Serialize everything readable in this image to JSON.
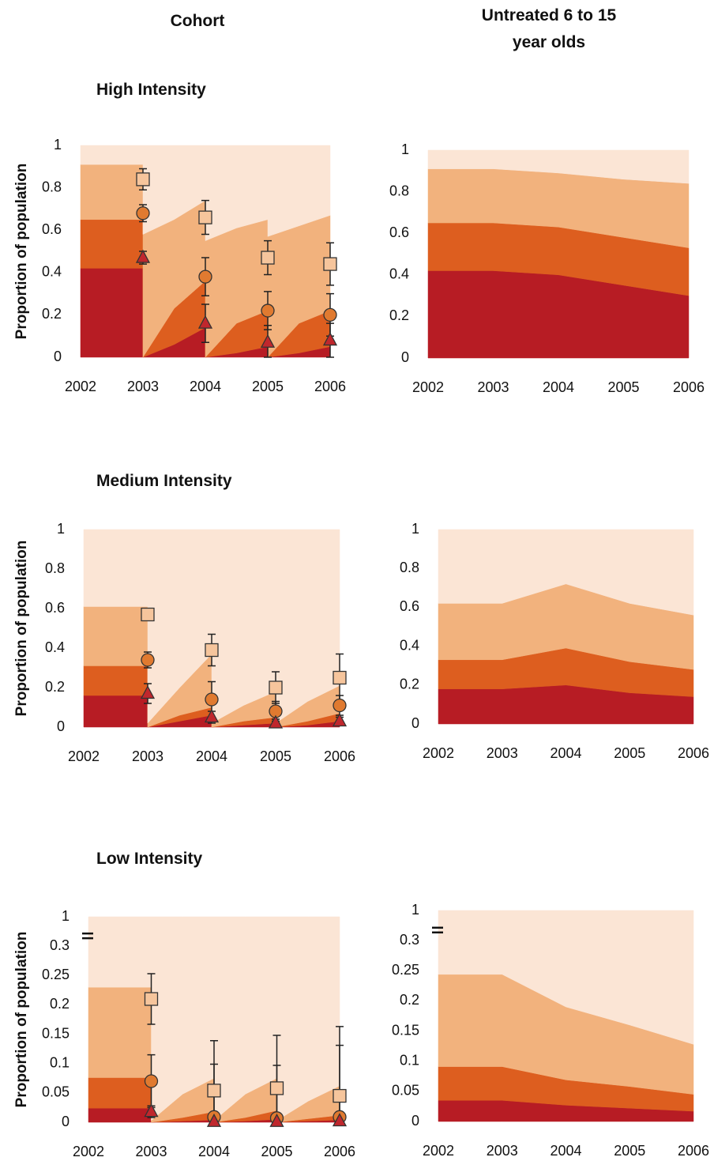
{
  "column_titles": [
    "Cohort",
    "Untreated 6 to 15 year olds"
  ],
  "row_titles": [
    "High Intensity",
    "Medium Intensity",
    "Low Intensity"
  ],
  "chart_data": [
    {
      "type": "area",
      "stacked": true,
      "ylabel": "Proportion of population",
      "x": [
        2002,
        2003,
        2003,
        2003.5,
        2004,
        2004,
        2004.5,
        2005,
        2005,
        2005.5,
        2006
      ],
      "series": [
        {
          "color": "#b71c24",
          "values": [
            0.42,
            0.42,
            0,
            0.06,
            0.14,
            0,
            0.02,
            0.05,
            0,
            0.02,
            0.05
          ]
        },
        {
          "color": "#dd5e1f",
          "values": [
            0.23,
            0.23,
            0,
            0.17,
            0.22,
            0,
            0.14,
            0.17,
            0,
            0.14,
            0.17
          ]
        },
        {
          "color": "#f2b27d",
          "values": [
            0.26,
            0.26,
            0.58,
            0.42,
            0.38,
            0.55,
            0.45,
            0.43,
            0.57,
            0.46,
            0.45
          ]
        },
        {
          "color": "#fbe5d5",
          "values": [
            0.09,
            0.09,
            0.42,
            0.35,
            0.26,
            0.45,
            0.39,
            0.35,
            0.43,
            0.38,
            0.33
          ]
        }
      ],
      "marker_x": [
        2003,
        2004,
        2005,
        2006
      ],
      "markers": [
        {
          "shape": "square",
          "color": "#f6c59c",
          "values": [
            0.84,
            0.66,
            0.47,
            0.44
          ],
          "errors": [
            0.05,
            0.08,
            0.08,
            0.1
          ]
        },
        {
          "shape": "circle",
          "color": "#e07a30",
          "values": [
            0.68,
            0.38,
            0.22,
            0.2
          ],
          "errors": [
            0.04,
            0.09,
            0.09,
            0.1
          ]
        },
        {
          "shape": "triangle",
          "color": "#c0272d",
          "values": [
            0.47,
            0.16,
            0.07,
            0.08
          ],
          "errors": [
            0.03,
            0.09,
            0.08,
            0.08
          ]
        }
      ],
      "xlim": [
        2002,
        2006
      ],
      "xticks": [
        2002,
        2003,
        2004,
        2005,
        2006
      ],
      "ylim": [
        0,
        1
      ],
      "yticks": [
        0,
        0.2,
        0.4,
        0.6,
        0.8,
        1
      ]
    },
    {
      "type": "area",
      "stacked": true,
      "x": [
        2002,
        2003,
        2004,
        2005,
        2006
      ],
      "series": [
        {
          "color": "#b71c24",
          "values": [
            0.42,
            0.42,
            0.4,
            0.35,
            0.3
          ]
        },
        {
          "color": "#dd5e1f",
          "values": [
            0.23,
            0.23,
            0.23,
            0.23,
            0.23
          ]
        },
        {
          "color": "#f2b27d",
          "values": [
            0.26,
            0.26,
            0.26,
            0.28,
            0.31
          ]
        },
        {
          "color": "#fbe5d5",
          "values": [
            0.09,
            0.09,
            0.11,
            0.14,
            0.16
          ]
        }
      ],
      "xlim": [
        2002,
        2006
      ],
      "xticks": [
        2002,
        2003,
        2004,
        2005,
        2006
      ],
      "ylim": [
        0,
        1
      ],
      "yticks": [
        0,
        0.2,
        0.4,
        0.6,
        0.8,
        1
      ]
    },
    {
      "type": "area",
      "stacked": true,
      "ylabel": "Proportion of population",
      "x": [
        2002,
        2003,
        2003,
        2003.5,
        2004,
        2004,
        2004.5,
        2005,
        2005,
        2005.5,
        2006
      ],
      "series": [
        {
          "color": "#b71c24",
          "values": [
            0.16,
            0.16,
            0,
            0.03,
            0.06,
            0,
            0.01,
            0.02,
            0,
            0.01,
            0.03
          ]
        },
        {
          "color": "#dd5e1f",
          "values": [
            0.15,
            0.15,
            0,
            0.03,
            0.04,
            0,
            0.02,
            0.03,
            0,
            0.02,
            0.04
          ]
        },
        {
          "color": "#f2b27d",
          "values": [
            0.3,
            0.3,
            0.02,
            0.14,
            0.27,
            0.02,
            0.08,
            0.13,
            0.02,
            0.1,
            0.14
          ]
        },
        {
          "color": "#fbe5d5",
          "values": [
            0.39,
            0.39,
            0.98,
            0.8,
            0.63,
            0.98,
            0.89,
            0.82,
            0.98,
            0.87,
            0.79
          ]
        }
      ],
      "marker_x": [
        2003,
        2004,
        2005,
        2006
      ],
      "markers": [
        {
          "shape": "square",
          "color": "#f6c59c",
          "values": [
            0.57,
            0.39,
            0.2,
            0.25
          ],
          "errors": [
            0.03,
            0.08,
            0.08,
            0.12
          ]
        },
        {
          "shape": "circle",
          "color": "#e07a30",
          "values": [
            0.34,
            0.14,
            0.08,
            0.11
          ],
          "errors": [
            0.04,
            0.09,
            0.05,
            0.05
          ]
        },
        {
          "shape": "triangle",
          "color": "#c0272d",
          "values": [
            0.17,
            0.05,
            0.02,
            0.03
          ],
          "errors": [
            0.05,
            0.03,
            0.02,
            0.02
          ]
        }
      ],
      "xlim": [
        2002,
        2006
      ],
      "xticks": [
        2002,
        2003,
        2004,
        2005,
        2006
      ],
      "ylim": [
        0,
        1
      ],
      "yticks": [
        0,
        0.2,
        0.4,
        0.6,
        0.8,
        1
      ]
    },
    {
      "type": "area",
      "stacked": true,
      "x": [
        2002,
        2003,
        2004,
        2005,
        2006
      ],
      "series": [
        {
          "color": "#b71c24",
          "values": [
            0.18,
            0.18,
            0.2,
            0.16,
            0.14
          ]
        },
        {
          "color": "#dd5e1f",
          "values": [
            0.15,
            0.15,
            0.19,
            0.16,
            0.14
          ]
        },
        {
          "color": "#f2b27d",
          "values": [
            0.29,
            0.29,
            0.33,
            0.3,
            0.28
          ]
        },
        {
          "color": "#fbe5d5",
          "values": [
            0.38,
            0.38,
            0.28,
            0.38,
            0.44
          ]
        }
      ],
      "xlim": [
        2002,
        2006
      ],
      "xticks": [
        2002,
        2003,
        2004,
        2005,
        2006
      ],
      "ylim": [
        0,
        1
      ],
      "yticks": [
        0,
        0.2,
        0.4,
        0.6,
        0.8,
        1
      ]
    },
    {
      "type": "area",
      "stacked": true,
      "ylabel": "Proportion of population",
      "x": [
        2002,
        2003,
        2003,
        2003.5,
        2004,
        2004,
        2004.5,
        2005,
        2005,
        2005.5,
        2006
      ],
      "series": [
        {
          "color": "#b71c24",
          "values": [
            0.024,
            0.024,
            0,
            0.002,
            0.004,
            0,
            0.002,
            0.005,
            0,
            0.002,
            0.004
          ]
        },
        {
          "color": "#dd5e1f",
          "values": [
            0.052,
            0.052,
            0,
            0.006,
            0.014,
            0,
            0.006,
            0.015,
            0,
            0.004,
            0.008
          ]
        },
        {
          "color": "#f2b27d",
          "values": [
            0.154,
            0.154,
            0.003,
            0.04,
            0.057,
            0.003,
            0.04,
            0.055,
            0.003,
            0.03,
            0.05
          ]
        },
        {
          "color": "#fbe5d5",
          "values": [
            0.77,
            0.77,
            0.997,
            0.952,
            0.925,
            0.997,
            0.952,
            0.925,
            0.997,
            0.964,
            0.938
          ]
        }
      ],
      "marker_x": [
        2003,
        2004,
        2005,
        2006
      ],
      "markers": [
        {
          "shape": "square",
          "color": "#f6c59c",
          "values": [
            0.21,
            0.054,
            0.058,
            0.045
          ],
          "errors": [
            0.043,
            0.085,
            0.09,
            0.118
          ]
        },
        {
          "shape": "circle",
          "color": "#e07a30",
          "values": [
            0.07,
            0.009,
            0.007,
            0.009
          ],
          "errors": [
            0.045,
            0.09,
            0.09,
            0.122
          ]
        },
        {
          "shape": "triangle",
          "color": "#c0272d",
          "values": [
            0.018,
            0.001,
            0.001,
            0.002
          ],
          "errors": [
            0.01,
            0.003,
            0.003,
            0.003
          ]
        }
      ],
      "xlim": [
        2002,
        2006
      ],
      "xticks": [
        2002,
        2003,
        2004,
        2005,
        2006
      ],
      "ylim": [
        0,
        1
      ],
      "yticks": [
        0,
        0.05,
        0.1,
        0.15,
        0.2,
        0.25,
        0.3,
        1
      ],
      "axis_break": [
        0.3,
        1
      ]
    },
    {
      "type": "area",
      "stacked": true,
      "x": [
        2002,
        2003,
        2004,
        2005,
        2006
      ],
      "series": [
        {
          "color": "#b71c24",
          "values": [
            0.035,
            0.035,
            0.027,
            0.022,
            0.017
          ]
        },
        {
          "color": "#dd5e1f",
          "values": [
            0.056,
            0.056,
            0.042,
            0.036,
            0.028
          ]
        },
        {
          "color": "#f2b27d",
          "values": [
            0.153,
            0.153,
            0.121,
            0.102,
            0.083
          ]
        },
        {
          "color": "#fbe5d5",
          "values": [
            0.756,
            0.756,
            0.81,
            0.84,
            0.872
          ]
        }
      ],
      "xlim": [
        2002,
        2006
      ],
      "xticks": [
        2002,
        2003,
        2004,
        2005,
        2006
      ],
      "ylim": [
        0,
        1
      ],
      "yticks": [
        0,
        0.05,
        0.1,
        0.15,
        0.2,
        0.25,
        0.3,
        1
      ],
      "axis_break": [
        0.3,
        1
      ]
    }
  ]
}
